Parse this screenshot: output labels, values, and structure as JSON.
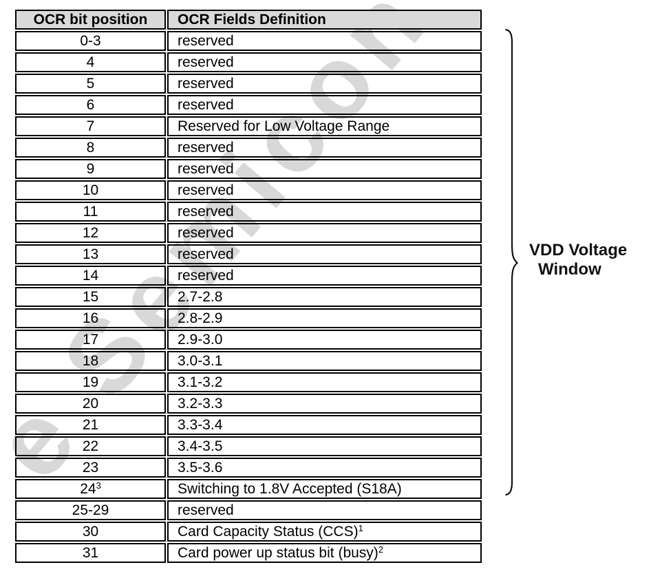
{
  "watermark": {
    "text": "e Semicon"
  },
  "colors": {
    "header_bg": "#d9d9d9",
    "watermark": "#d8d8d8",
    "border": "#000000",
    "text": "#000000"
  },
  "table": {
    "headers": [
      "OCR bit position",
      "OCR Fields Definition"
    ],
    "rows": [
      {
        "bit": "0-3",
        "bit_sup": "",
        "definition": "reserved",
        "def_sup": ""
      },
      {
        "bit": "4",
        "bit_sup": "",
        "definition": "reserved",
        "def_sup": ""
      },
      {
        "bit": "5",
        "bit_sup": "",
        "definition": "reserved",
        "def_sup": ""
      },
      {
        "bit": "6",
        "bit_sup": "",
        "definition": "reserved",
        "def_sup": ""
      },
      {
        "bit": "7",
        "bit_sup": "",
        "definition": "Reserved for Low Voltage Range",
        "def_sup": ""
      },
      {
        "bit": "8",
        "bit_sup": "",
        "definition": "reserved",
        "def_sup": ""
      },
      {
        "bit": "9",
        "bit_sup": "",
        "definition": "reserved",
        "def_sup": ""
      },
      {
        "bit": "10",
        "bit_sup": "",
        "definition": "reserved",
        "def_sup": ""
      },
      {
        "bit": "11",
        "bit_sup": "",
        "definition": "reserved",
        "def_sup": ""
      },
      {
        "bit": "12",
        "bit_sup": "",
        "definition": "reserved",
        "def_sup": ""
      },
      {
        "bit": "13",
        "bit_sup": "",
        "definition": "reserved",
        "def_sup": ""
      },
      {
        "bit": "14",
        "bit_sup": "",
        "definition": "reserved",
        "def_sup": ""
      },
      {
        "bit": "15",
        "bit_sup": "",
        "definition": "2.7-2.8",
        "def_sup": ""
      },
      {
        "bit": "16",
        "bit_sup": "",
        "definition": "2.8-2.9",
        "def_sup": ""
      },
      {
        "bit": "17",
        "bit_sup": "",
        "definition": "2.9-3.0",
        "def_sup": ""
      },
      {
        "bit": "18",
        "bit_sup": "",
        "definition": "3.0-3.1",
        "def_sup": ""
      },
      {
        "bit": "19",
        "bit_sup": "",
        "definition": "3.1-3.2",
        "def_sup": ""
      },
      {
        "bit": "20",
        "bit_sup": "",
        "definition": "3.2-3.3",
        "def_sup": ""
      },
      {
        "bit": "21",
        "bit_sup": "",
        "definition": "3.3-3.4",
        "def_sup": ""
      },
      {
        "bit": "22",
        "bit_sup": "",
        "definition": "3.4-3.5",
        "def_sup": ""
      },
      {
        "bit": "23",
        "bit_sup": "",
        "definition": "3.5-3.6",
        "def_sup": ""
      },
      {
        "bit": "24",
        "bit_sup": "3",
        "definition": "Switching to 1.8V Accepted (S18A)",
        "def_sup": ""
      },
      {
        "bit": "25-29",
        "bit_sup": "",
        "definition": "reserved",
        "def_sup": ""
      },
      {
        "bit": "30",
        "bit_sup": "",
        "definition": "Card Capacity Status (CCS)",
        "def_sup": "1"
      },
      {
        "bit": "31",
        "bit_sup": "",
        "definition": "Card power up status bit (busy)",
        "def_sup": "2"
      }
    ]
  },
  "annotation": {
    "label_line1": "VDD Voltage",
    "label_line2": "Window"
  }
}
